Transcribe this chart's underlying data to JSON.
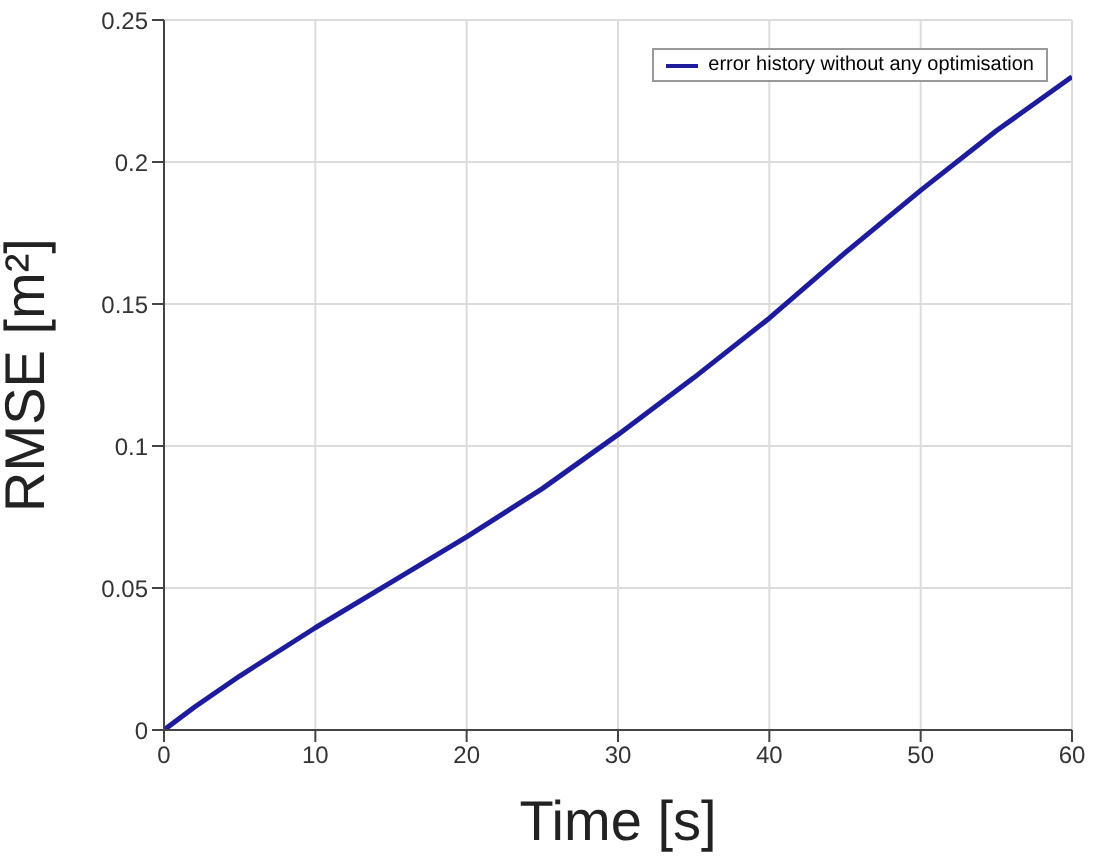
{
  "chart_data": {
    "type": "line",
    "xlabel": "Time [s]",
    "ylabel": "RMSE [m²]",
    "x": [
      0,
      2,
      5,
      10,
      15,
      20,
      25,
      30,
      35,
      40,
      45,
      50,
      55,
      60
    ],
    "series": [
      {
        "name": "error history without any optimisation",
        "color": "#1c1c9c",
        "values": [
          0,
          0.008,
          0.019,
          0.036,
          0.052,
          0.068,
          0.085,
          0.104,
          0.124,
          0.145,
          0.168,
          0.19,
          0.211,
          0.23
        ]
      }
    ],
    "xlim": [
      0,
      60
    ],
    "xticks": [
      0,
      10,
      20,
      30,
      40,
      50,
      60
    ],
    "ylim": [
      0,
      0.25
    ],
    "yticks": [
      0,
      0.05,
      0.1,
      0.15,
      0.2,
      0.25
    ],
    "grid": true,
    "legend": "top right",
    "marker": "none",
    "line_style": "solid"
  }
}
